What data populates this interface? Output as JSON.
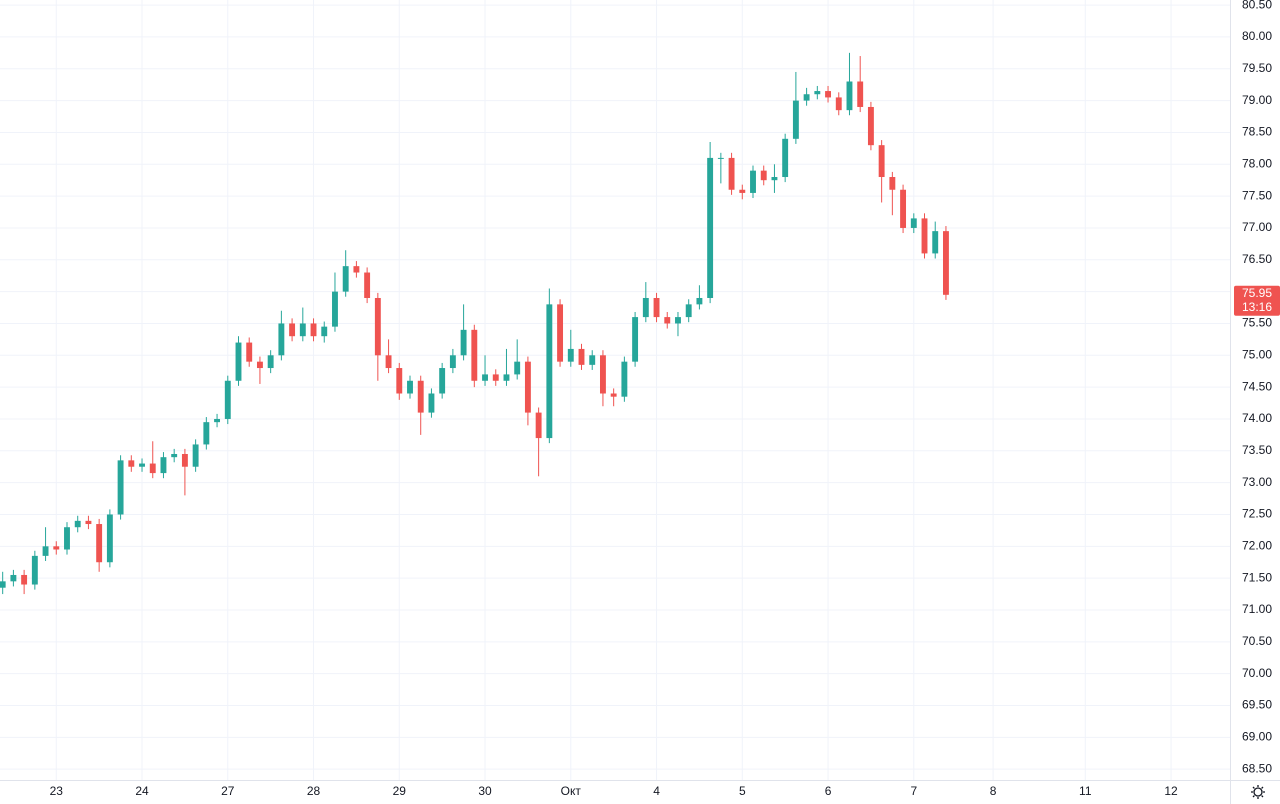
{
  "chart_data": {
    "type": "candlestick",
    "up_color": "#26a69a",
    "down_color": "#ef5350",
    "grid": true,
    "open": [
      71.35,
      71.45,
      71.55,
      71.4,
      71.85,
      72.0,
      71.95,
      72.3,
      72.4,
      72.35,
      71.75,
      72.5,
      73.35,
      73.25,
      73.3,
      73.15,
      73.4,
      73.45,
      73.25,
      73.6,
      73.95,
      74.0,
      74.6,
      75.2,
      74.9,
      74.8,
      75.0,
      75.5,
      75.3,
      75.5,
      75.3,
      75.45,
      76.0,
      76.4,
      76.3,
      75.9,
      75.0,
      74.8,
      74.4,
      74.6,
      74.1,
      74.4,
      74.8,
      75.0,
      75.4,
      74.6,
      74.7,
      74.6,
      74.7,
      74.9,
      74.1,
      73.7,
      75.8,
      74.9,
      75.1,
      74.85,
      75.0,
      74.4,
      74.35,
      74.9,
      75.6,
      75.9,
      75.6,
      75.5,
      75.6,
      75.8,
      75.9,
      78.1,
      78.1,
      77.6,
      77.55,
      77.9,
      77.75,
      77.8,
      78.4,
      79.0,
      79.1,
      79.15,
      79.05,
      78.85,
      79.3,
      78.9,
      78.3,
      77.8,
      77.6,
      77.0,
      77.15,
      76.6,
      76.95
    ],
    "high": [
      71.6,
      71.63,
      71.63,
      71.93,
      72.3,
      72.08,
      72.38,
      72.48,
      72.48,
      72.43,
      72.58,
      73.43,
      73.43,
      73.38,
      73.65,
      73.48,
      73.53,
      73.53,
      73.68,
      74.03,
      74.08,
      74.68,
      75.3,
      75.28,
      74.98,
      75.08,
      75.7,
      75.58,
      75.75,
      75.58,
      75.53,
      76.3,
      76.65,
      76.48,
      76.38,
      75.98,
      75.25,
      74.88,
      74.68,
      74.68,
      74.48,
      74.88,
      75.1,
      75.8,
      75.48,
      75.0,
      74.78,
      75.1,
      75.25,
      74.98,
      74.18,
      76.05,
      75.88,
      75.4,
      75.18,
      75.08,
      75.08,
      74.48,
      74.98,
      75.68,
      76.15,
      75.98,
      75.68,
      75.68,
      75.88,
      76.1,
      78.35,
      78.18,
      78.18,
      77.68,
      77.98,
      77.98,
      78.0,
      78.48,
      79.45,
      79.2,
      79.23,
      79.23,
      79.13,
      79.75,
      79.7,
      78.98,
      78.38,
      77.88,
      77.68,
      77.23,
      77.23,
      77.1,
      77.03
    ],
    "low": [
      71.25,
      71.37,
      71.25,
      71.32,
      71.77,
      71.87,
      71.87,
      72.22,
      72.27,
      71.6,
      71.67,
      72.42,
      73.17,
      73.17,
      73.07,
      73.07,
      73.32,
      72.8,
      73.17,
      73.52,
      73.87,
      73.92,
      74.52,
      74.82,
      74.55,
      74.72,
      74.92,
      75.22,
      75.22,
      75.22,
      75.2,
      75.37,
      75.92,
      76.22,
      75.82,
      74.6,
      74.72,
      74.3,
      74.32,
      73.75,
      74.02,
      74.32,
      74.72,
      74.92,
      74.5,
      74.52,
      74.52,
      74.52,
      74.62,
      73.9,
      73.1,
      73.62,
      74.82,
      74.82,
      74.77,
      74.77,
      74.2,
      74.2,
      74.27,
      74.82,
      75.52,
      75.52,
      75.42,
      75.3,
      75.52,
      75.72,
      75.82,
      77.7,
      77.52,
      77.45,
      77.47,
      77.67,
      77.55,
      77.72,
      78.32,
      78.92,
      79.02,
      78.97,
      78.77,
      78.77,
      78.82,
      78.22,
      77.4,
      77.2,
      76.92,
      76.92,
      76.52,
      76.52,
      75.87
    ],
    "close": [
      71.45,
      71.55,
      71.4,
      71.85,
      72.0,
      71.95,
      72.3,
      72.4,
      72.35,
      71.75,
      72.5,
      73.35,
      73.25,
      73.3,
      73.15,
      73.4,
      73.45,
      73.25,
      73.6,
      73.95,
      74.0,
      74.6,
      75.2,
      74.9,
      74.8,
      75.0,
      75.5,
      75.3,
      75.5,
      75.3,
      75.45,
      76.0,
      76.4,
      76.3,
      75.9,
      75.0,
      74.8,
      74.4,
      74.6,
      74.1,
      74.4,
      74.8,
      75.0,
      75.4,
      74.6,
      74.7,
      74.6,
      74.7,
      74.9,
      74.1,
      73.7,
      75.8,
      74.9,
      75.1,
      74.85,
      75.0,
      74.4,
      74.35,
      74.9,
      75.6,
      75.9,
      75.6,
      75.5,
      75.6,
      75.8,
      75.9,
      78.1,
      78.1,
      77.6,
      77.55,
      77.9,
      77.75,
      77.8,
      78.4,
      79.0,
      79.1,
      79.15,
      79.05,
      78.85,
      79.3,
      78.9,
      78.3,
      77.8,
      77.6,
      77.0,
      77.15,
      76.6,
      76.95,
      75.95
    ],
    "countdown": "13:16",
    "xlim": [
      -0.25,
      114.5
    ],
    "xticks": [
      {
        "value": 5,
        "label": "23"
      },
      {
        "value": 13,
        "label": "24"
      },
      {
        "value": 21,
        "label": "27"
      },
      {
        "value": 29,
        "label": "28"
      },
      {
        "value": 37,
        "label": "29"
      },
      {
        "value": 45,
        "label": "30"
      },
      {
        "value": 53,
        "label": "Окт"
      },
      {
        "value": 61,
        "label": "4"
      },
      {
        "value": 69,
        "label": "5"
      },
      {
        "value": 77,
        "label": "6"
      },
      {
        "value": 85,
        "label": "7"
      },
      {
        "value": 92.4,
        "label": "8"
      },
      {
        "value": 101,
        "label": "11"
      },
      {
        "value": 109,
        "label": "12"
      }
    ],
    "ylim": [
      68.33,
      80.58
    ],
    "yticks": [
      {
        "value": 68.5,
        "label": "68.50"
      },
      {
        "value": 69,
        "label": "69.00"
      },
      {
        "value": 69.5,
        "label": "69.50"
      },
      {
        "value": 70,
        "label": "70.00"
      },
      {
        "value": 70.5,
        "label": "70.50"
      },
      {
        "value": 71,
        "label": "71.00"
      },
      {
        "value": 71.5,
        "label": "71.50"
      },
      {
        "value": 72,
        "label": "72.00"
      },
      {
        "value": 72.5,
        "label": "72.50"
      },
      {
        "value": 73,
        "label": "73.00"
      },
      {
        "value": 73.5,
        "label": "73.50"
      },
      {
        "value": 74,
        "label": "74.00"
      },
      {
        "value": 74.5,
        "label": "74.50"
      },
      {
        "value": 75,
        "label": "75.00"
      },
      {
        "value": 75.5,
        "label": "75.50"
      },
      {
        "value": 76,
        "label": "76.00"
      },
      {
        "value": 76.5,
        "label": "76.50"
      },
      {
        "value": 77,
        "label": "77.00"
      },
      {
        "value": 77.5,
        "label": "77.50"
      },
      {
        "value": 78,
        "label": "78.00"
      },
      {
        "value": 78.5,
        "label": "78.50"
      },
      {
        "value": 79,
        "label": "79.00"
      },
      {
        "value": 79.5,
        "label": "79.50"
      },
      {
        "value": 80,
        "label": "80.00"
      },
      {
        "value": 80.5,
        "label": "80.50"
      }
    ]
  }
}
